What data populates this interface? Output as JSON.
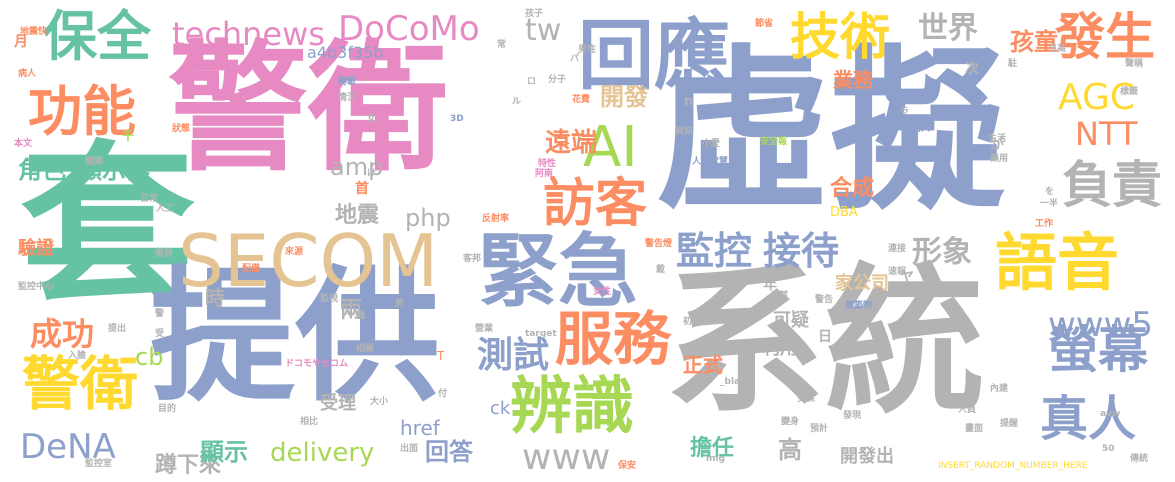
{
  "palette": {
    "blue": "#8da0cb",
    "grey": "#b3b3b3",
    "green": "#66c2a5",
    "orange": "#fc8d62",
    "pink": "#e78ac3",
    "lime": "#a6d854",
    "yellow": "#ffd92f",
    "tan": "#e5c494"
  },
  "words": [
    {
      "text": "警衛",
      "color": "#e78ac3"
    },
    {
      "text": "虛擬",
      "color": "#8da0cb"
    },
    {
      "text": "套",
      "color": "#66c2a5"
    },
    {
      "text": "提供",
      "color": "#8da0cb"
    },
    {
      "text": "系統",
      "color": "#b3b3b3"
    },
    {
      "text": "緊急",
      "color": "#8da0cb"
    },
    {
      "text": "SECOM",
      "color": "#e5c494"
    },
    {
      "text": "回應",
      "color": "#8da0cb"
    },
    {
      "text": "語音",
      "color": "#ffd92f"
    },
    {
      "text": "辨識",
      "color": "#a6d854"
    },
    {
      "text": "服務",
      "color": "#fc8d62"
    },
    {
      "text": "AI",
      "color": "#a6d854"
    },
    {
      "text": "訪客",
      "color": "#fc8d62"
    },
    {
      "text": "保全",
      "color": "#66c2a5"
    },
    {
      "text": "功能",
      "color": "#fc8d62"
    },
    {
      "text": "技術",
      "color": "#ffd92f"
    },
    {
      "text": "發生",
      "color": "#fc8d62"
    },
    {
      "text": "警衛",
      "color": "#ffd92f"
    },
    {
      "text": "螢幕",
      "color": "#8da0cb"
    },
    {
      "text": "負責",
      "color": "#b3b3b3"
    },
    {
      "text": "真人",
      "color": "#8da0cb"
    },
    {
      "text": "監控",
      "color": "#8da0cb"
    },
    {
      "text": "接待",
      "color": "#8da0cb"
    },
    {
      "text": "technews",
      "color": "#e78ac3"
    },
    {
      "text": "DoCoMo",
      "color": "#e78ac3"
    },
    {
      "text": "tw",
      "color": "#b3b3b3"
    },
    {
      "text": "世界",
      "color": "#b3b3b3"
    },
    {
      "text": "孩童",
      "color": "#fc8d62"
    },
    {
      "text": "AGC",
      "color": "#ffd92f"
    },
    {
      "text": "NTT",
      "color": "#fc8d62"
    },
    {
      "text": "www5",
      "color": "#8da0cb"
    },
    {
      "text": "DeNA",
      "color": "#8da0cb"
    },
    {
      "text": "www",
      "color": "#b3b3b3"
    },
    {
      "text": "測試",
      "color": "#8da0cb"
    },
    {
      "text": "成功",
      "color": "#fc8d62"
    },
    {
      "text": "遠端",
      "color": "#fc8d62"
    },
    {
      "text": "開發",
      "color": "#e5c494"
    },
    {
      "text": "形象",
      "color": "#b3b3b3"
    },
    {
      "text": "角色",
      "color": "#66c2a5"
    },
    {
      "text": "顯示器",
      "color": "#66c2a5"
    },
    {
      "text": "amp",
      "color": "#b3b3b3"
    },
    {
      "text": "php",
      "color": "#b3b3b3"
    },
    {
      "text": "地震",
      "color": "#b3b3b3"
    },
    {
      "text": "合成",
      "color": "#fc8d62"
    },
    {
      "text": "delivery",
      "color": "#a6d854"
    },
    {
      "text": "蹲下來",
      "color": "#b3b3b3"
    },
    {
      "text": "顯示",
      "color": "#66c2a5"
    },
    {
      "text": "href",
      "color": "#8da0cb"
    },
    {
      "text": "回答",
      "color": "#8da0cb"
    },
    {
      "text": "擔任",
      "color": "#66c2a5"
    },
    {
      "text": "高",
      "color": "#b3b3b3"
    },
    {
      "text": "開發出",
      "color": "#b3b3b3"
    },
    {
      "text": "可疑",
      "color": "#b3b3b3"
    },
    {
      "text": "家公司",
      "color": "#e5c494"
    },
    {
      "text": "受理",
      "color": "#b3b3b3"
    },
    {
      "text": "兩",
      "color": "#b3b3b3"
    },
    {
      "text": "時",
      "color": "#b3b3b3"
    },
    {
      "text": "cb",
      "color": "#a6d854"
    },
    {
      "text": "a4b3f35b",
      "color": "#8da0cb"
    },
    {
      "text": "業務",
      "color": "#fc8d62"
    },
    {
      "text": "正式",
      "color": "#fc8d62"
    },
    {
      "text": "利用",
      "color": "#b3b3b3"
    },
    {
      "text": "驗證",
      "color": "#fc8d62"
    },
    {
      "text": "ck",
      "color": "#8da0cb"
    },
    {
      "text": "INSERT_RANDOM_NUMBER_HERE",
      "color": "#ffd92f"
    },
    {
      "text": "zoneid",
      "color": "#8da0cb"
    },
    {
      "text": "DBA",
      "color": "#ffd92f"
    },
    {
      "text": "監控中心",
      "color": "#b3b3b3"
    },
    {
      "text": "監控室",
      "color": "#b3b3b3"
    },
    {
      "text": "警告",
      "color": "#b3b3b3"
    },
    {
      "text": "建築物",
      "color": "#8da0cb"
    },
    {
      "text": "安全報",
      "color": "#a6d854"
    },
    {
      "text": "人工智慧",
      "color": "#8da0cb"
    },
    {
      "text": "機器人",
      "color": "#8da0cb"
    },
    {
      "text": "資訊",
      "color": "#b3b3b3"
    },
    {
      "text": "花費",
      "color": "#fc8d62"
    },
    {
      "text": "分子",
      "color": "#b3b3b3"
    },
    {
      "text": "男性",
      "color": "#b3b3b3"
    },
    {
      "text": "女性",
      "color": "#e78ac3"
    },
    {
      "text": "病人",
      "color": "#fc8d62"
    },
    {
      "text": "狀態",
      "color": "#fc8d62"
    },
    {
      "text": "情況",
      "color": "#b3b3b3"
    },
    {
      "text": "轉載",
      "color": "#8da0cb"
    },
    {
      "text": "來源",
      "color": "#fc8d62"
    },
    {
      "text": "配備",
      "color": "#fc8d62"
    },
    {
      "text": "應對",
      "color": "#b3b3b3"
    },
    {
      "text": "目的",
      "color": "#b3b3b3"
    },
    {
      "text": "相關",
      "color": "#b3b3b3"
    },
    {
      "text": "大小",
      "color": "#b3b3b3"
    },
    {
      "text": "保安",
      "color": "#fc8d62"
    },
    {
      "text": "安保",
      "color": "#b3b3b3"
    },
    {
      "text": "一半",
      "color": "#b3b3b3"
    },
    {
      "text": "工作",
      "color": "#fc8d62"
    },
    {
      "text": "連接",
      "color": "#b3b3b3"
    },
    {
      "text": "速報",
      "color": "#b3b3b3"
    },
    {
      "text": "變身",
      "color": "#b3b3b3"
    },
    {
      "text": "發現",
      "color": "#b3b3b3"
    },
    {
      "text": "預計",
      "color": "#b3b3b3"
    },
    {
      "text": "提醒",
      "color": "#b3b3b3"
    },
    {
      "text": "傳統",
      "color": "#b3b3b3"
    },
    {
      "text": "出面",
      "color": "#b3b3b3"
    },
    {
      "text": "營業",
      "color": "#b3b3b3"
    },
    {
      "text": "ドコモやセコム",
      "color": "#e78ac3"
    },
    {
      "text": "target",
      "color": "#b3b3b3"
    },
    {
      "text": "_blank",
      "color": "#b3b3b3"
    },
    {
      "text": "img",
      "color": "#b3b3b3"
    },
    {
      "text": "avw",
      "color": "#b3b3b3"
    },
    {
      "text": "3D",
      "color": "#8da0cb"
    },
    {
      "text": "孩子",
      "color": "#b3b3b3"
    },
    {
      "text": "月",
      "color": "#fc8d62"
    },
    {
      "text": "年",
      "color": "#b3b3b3"
    },
    {
      "text": "次",
      "color": "#b3b3b3"
    },
    {
      "text": "日",
      "color": "#b3b3b3"
    },
    {
      "text": "首",
      "color": "#fc8d62"
    },
    {
      "text": "ヤ",
      "color": "#b3b3b3"
    },
    {
      "text": "a",
      "color": "#b3b3b3"
    },
    {
      "text": "n",
      "color": "#b3b3b3"
    },
    {
      "text": "が",
      "color": "#b3b3b3"
    },
    {
      "text": "常",
      "color": "#b3b3b3"
    },
    {
      "text": "女",
      "color": "#b3b3b3"
    },
    {
      "text": "男",
      "color": "#b3b3b3"
    },
    {
      "text": "本文",
      "color": "#e78ac3"
    },
    {
      "text": "開關",
      "color": "#b3b3b3"
    },
    {
      "text": "人工",
      "color": "#b3b3b3"
    },
    {
      "text": "日常",
      "color": "#b3b3b3"
    },
    {
      "text": "地震快",
      "color": "#fc8d62"
    },
    {
      "text": "監視",
      "color": "#b3b3b3"
    },
    {
      "text": "自然",
      "color": "#b3b3b3"
    },
    {
      "text": "警告燈",
      "color": "#fc8d62"
    },
    {
      "text": "反射率",
      "color": "#fc8d62"
    },
    {
      "text": "客邦",
      "color": "#b3b3b3"
    },
    {
      "text": "初の",
      "color": "#b3b3b3"
    },
    {
      "text": "節省",
      "color": "#fc8d62"
    },
    {
      "text": "日高",
      "color": "#b3b3b3"
    },
    {
      "text": "聲稱",
      "color": "#b3b3b3"
    },
    {
      "text": "小愛",
      "color": "#b3b3b3"
    },
    {
      "text": "阿南",
      "color": "#e78ac3"
    },
    {
      "text": "特性",
      "color": "#e78ac3"
    },
    {
      "text": "藥用",
      "color": "#b3b3b3"
    },
    {
      "text": "生活",
      "color": "#b3b3b3"
    },
    {
      "text": "內建",
      "color": "#b3b3b3"
    },
    {
      "text": "畫面",
      "color": "#b3b3b3"
    },
    {
      "text": "人員",
      "color": "#b3b3b3"
    },
    {
      "text": "標籤",
      "color": "#b3b3b3"
    },
    {
      "text": "入臉",
      "color": "#b3b3b3"
    },
    {
      "text": "提出",
      "color": "#b3b3b3"
    },
    {
      "text": "相比",
      "color": "#b3b3b3"
    },
    {
      "text": "付",
      "color": "#b3b3b3"
    },
    {
      "text": "千",
      "color": "#a6d854"
    },
    {
      "text": "受",
      "color": "#b3b3b3"
    },
    {
      "text": "駐",
      "color": "#b3b3b3"
    },
    {
      "text": "50",
      "color": "#b3b3b3"
    },
    {
      "text": "ル",
      "color": "#b3b3b3"
    },
    {
      "text": "ロ",
      "color": "#b3b3b3"
    },
    {
      "text": "パ",
      "color": "#b3b3b3"
    },
    {
      "text": "ラ",
      "color": "#b3b3b3"
    },
    {
      "text": "警",
      "color": "#b3b3b3"
    },
    {
      "text": "戴",
      "color": "#b3b3b3"
    },
    {
      "text": "を",
      "color": "#b3b3b3"
    },
    {
      "text": "け",
      "color": "#b3b3b3"
    },
    {
      "text": "T",
      "color": "#fc8d62"
    }
  ]
}
